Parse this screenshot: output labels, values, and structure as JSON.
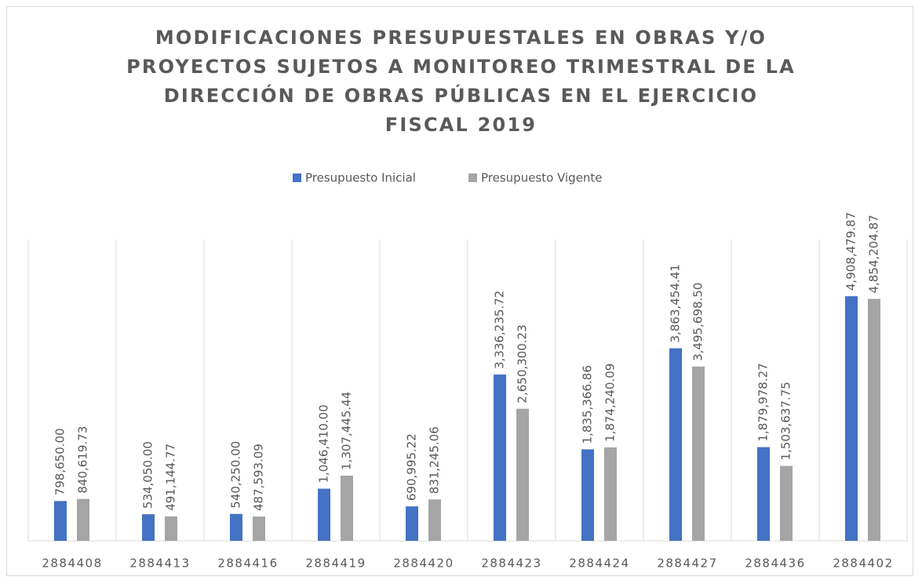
{
  "chart_data": {
    "type": "bar",
    "title": "MODIFICACIONES PRESUPUESTALES EN OBRAS Y/O PROYECTOS SUJETOS A MONITOREO TRIMESTRAL DE LA DIRECCIÓN DE OBRAS PÚBLICAS EN EL EJERCICIO FISCAL 2019",
    "categories": [
      "2884408",
      "2884413",
      "2884416",
      "2884419",
      "2884420",
      "2884423",
      "2884424",
      "2884427",
      "2884436",
      "2884402"
    ],
    "series": [
      {
        "name": "Presupuesto Inicial",
        "color": "#4472c4",
        "values": [
          798650.0,
          534050.0,
          540250.0,
          1046410.0,
          690995.22,
          3336235.72,
          1835366.86,
          3863454.41,
          1879978.27,
          4908479.87
        ],
        "value_labels": [
          "798,650.00",
          "534,050.00",
          "540,250.00",
          "1,046,410.00",
          "690,995.22",
          "3,336,235.72",
          "1,835,366.86",
          "3,863,454.41",
          "1,879,978.27",
          "4,908,479.87"
        ]
      },
      {
        "name": "Presupuesto Vigente",
        "color": "#a5a5a5",
        "values": [
          840619.73,
          491144.77,
          487593.09,
          1307445.44,
          831245.06,
          2650300.23,
          1874240.09,
          3495698.5,
          1503637.75,
          4854204.87
        ],
        "value_labels": [
          "840,619.73",
          "491,144.77",
          "487,593.09",
          "1,307,445.44",
          "831,245.06",
          "2,650,300.23",
          "1,874,240.09",
          "3,495,698.50",
          "1,503,637.75",
          "4,854,204.87"
        ]
      }
    ],
    "ylim": [
      0,
      6000000
    ],
    "legend": "top"
  }
}
